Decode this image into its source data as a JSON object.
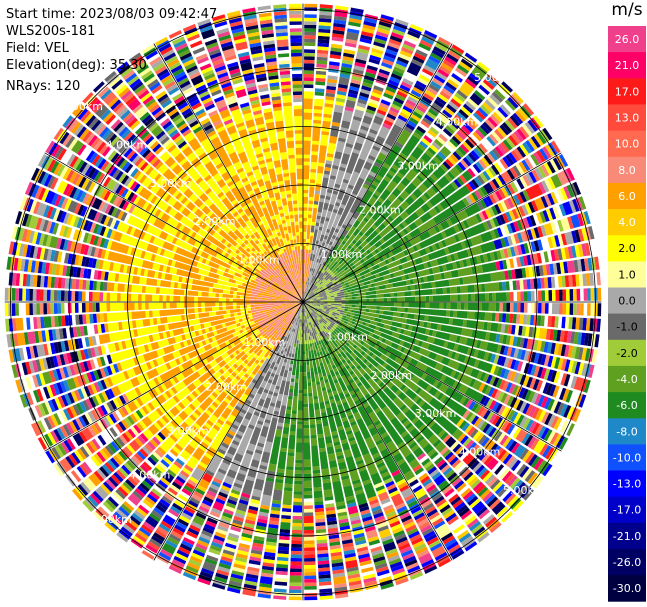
{
  "header": {
    "start_time": "Start time: 2023/08/03 09:42:47",
    "instrument": "WLS200s-181",
    "field": "Field: VEL",
    "elevation": "Elevation(deg): 35.30",
    "nrays": "NRays: 120"
  },
  "colorbar": {
    "unit": "m/s",
    "entries": [
      {
        "label": "26.0",
        "color": "#f0408c"
      },
      {
        "label": "21.0",
        "color": "#ff0066"
      },
      {
        "label": "17.0",
        "color": "#ff1a1a"
      },
      {
        "label": "13.0",
        "color": "#ff4a3c"
      },
      {
        "label": "10.0",
        "color": "#ff6a50"
      },
      {
        "label": "8.0",
        "color": "#fa8a78"
      },
      {
        "label": "6.0",
        "color": "#ff9f00"
      },
      {
        "label": "4.0",
        "color": "#ffcc00"
      },
      {
        "label": "2.0",
        "color": "#ffff00"
      },
      {
        "label": "1.0",
        "color": "#ffff9a"
      },
      {
        "label": "0.0",
        "color": "#a9a9a9"
      },
      {
        "label": "-1.0",
        "color": "#6a6a6a"
      },
      {
        "label": "-2.0",
        "color": "#a0cc3a"
      },
      {
        "label": "-4.0",
        "color": "#60a020"
      },
      {
        "label": "-6.0",
        "color": "#1f8a1f"
      },
      {
        "label": "-8.0",
        "color": "#1e88c8"
      },
      {
        "label": "-10.0",
        "color": "#0f50ff"
      },
      {
        "label": "-13.0",
        "color": "#0000ff"
      },
      {
        "label": "-17.0",
        "color": "#0000c8"
      },
      {
        "label": "-21.0",
        "color": "#00008c"
      },
      {
        "label": "-26.0",
        "color": "#000064"
      },
      {
        "label": "-30.0",
        "color": "#000040"
      }
    ]
  },
  "chart_data": {
    "type": "heatmap",
    "projection": "polar (PPI)",
    "field": "VEL",
    "units": "m/s",
    "nrays": 120,
    "range_rings_km": [
      1.0,
      2.0,
      3.0,
      4.0,
      5.0
    ],
    "ring_labels": [
      "1.00km",
      "2.00km",
      "3.00km",
      "4.00km",
      "5.00km"
    ],
    "max_range_km": 5.1,
    "spoke_angles_deg": [
      0,
      30,
      60,
      90,
      120,
      150,
      180,
      210,
      240,
      270,
      300,
      330
    ],
    "color_scale_m_s": [
      26.0,
      21.0,
      17.0,
      13.0,
      10.0,
      8.0,
      6.0,
      4.0,
      2.0,
      1.0,
      0.0,
      -1.0,
      -2.0,
      -4.0,
      -6.0,
      -8.0,
      -10.0,
      -13.0,
      -17.0,
      -21.0,
      -26.0,
      -30.0
    ],
    "pattern": {
      "positive_sector_center_deg": 285,
      "negative_sector_center_deg": 115,
      "near_field_km": 3.3,
      "far_field": "noisy"
    }
  }
}
